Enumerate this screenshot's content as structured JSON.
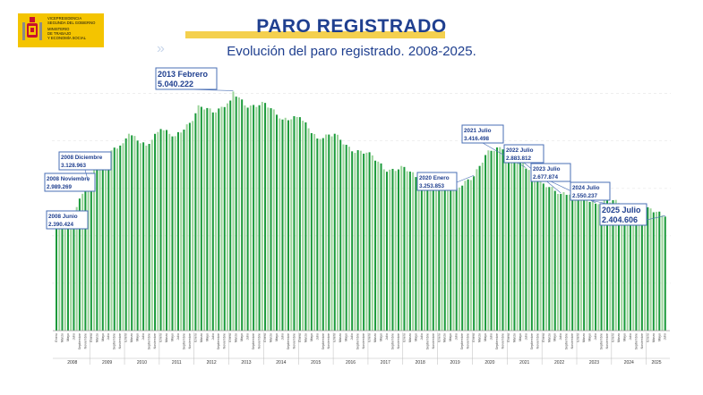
{
  "header": {
    "logo_lines": [
      "VICEPRESIDENCIA",
      "SEGUNDA DEL GOBIERNO",
      "MINISTERIO",
      "DE TRABAJO",
      "Y ECONOMÍA SOCIAL"
    ],
    "title": "PARO REGISTRADO",
    "subtitle": "Evolución del paro registrado. 2008-2025."
  },
  "colors": {
    "bar_even": "#1a9a3a",
    "bar_odd": "#9cd59b",
    "title": "#1f3f8f",
    "callout_border": "#4a6fb5",
    "logo_bg": "#f4c400"
  },
  "chart_data": {
    "type": "bar",
    "month_labels": [
      "Enero",
      "Marzo",
      "Mayo",
      "Julio",
      "Septiembre",
      "Noviembre"
    ],
    "years": [
      "2008",
      "2009",
      "2010",
      "2011",
      "2012",
      "2013",
      "2014",
      "2015",
      "2016",
      "2017",
      "2018",
      "2019",
      "2020",
      "2021",
      "2022",
      "2023",
      "2024",
      "2025"
    ],
    "ylim": [
      0,
      5500000
    ],
    "grid": true,
    "anchors": [
      {
        "i": 0,
        "v": 2261000
      },
      {
        "i": 5,
        "v": 2390424
      },
      {
        "i": 10,
        "v": 2989269
      },
      {
        "i": 11,
        "v": 3128963
      },
      {
        "i": 14,
        "v": 3600000
      },
      {
        "i": 19,
        "v": 3800000
      },
      {
        "i": 23,
        "v": 3950000
      },
      {
        "i": 25,
        "v": 4150000
      },
      {
        "i": 31,
        "v": 3900000
      },
      {
        "i": 36,
        "v": 4250000
      },
      {
        "i": 41,
        "v": 4100000
      },
      {
        "i": 47,
        "v": 4420000
      },
      {
        "i": 49,
        "v": 4750000
      },
      {
        "i": 55,
        "v": 4600000
      },
      {
        "i": 60,
        "v": 4850000
      },
      {
        "i": 61,
        "v": 5040222
      },
      {
        "i": 66,
        "v": 4700000
      },
      {
        "i": 72,
        "v": 4800000
      },
      {
        "i": 78,
        "v": 4450000
      },
      {
        "i": 84,
        "v": 4500000
      },
      {
        "i": 90,
        "v": 4050000
      },
      {
        "i": 96,
        "v": 4150000
      },
      {
        "i": 102,
        "v": 3780000
      },
      {
        "i": 108,
        "v": 3760000
      },
      {
        "i": 114,
        "v": 3350000
      },
      {
        "i": 120,
        "v": 3450000
      },
      {
        "i": 126,
        "v": 3150000
      },
      {
        "i": 132,
        "v": 3250000
      },
      {
        "i": 138,
        "v": 3000000
      },
      {
        "i": 144,
        "v": 3253853
      },
      {
        "i": 149,
        "v": 3800000
      },
      {
        "i": 158,
        "v": 3900000
      },
      {
        "i": 160,
        "v": 3900000
      },
      {
        "i": 162,
        "v": 3416498
      },
      {
        "i": 168,
        "v": 3100000
      },
      {
        "i": 174,
        "v": 2883812
      },
      {
        "i": 180,
        "v": 2900000
      },
      {
        "i": 186,
        "v": 2677874
      },
      {
        "i": 192,
        "v": 2750000
      },
      {
        "i": 198,
        "v": 2550237
      },
      {
        "i": 204,
        "v": 2600000
      },
      {
        "i": 210,
        "v": 2404606
      }
    ],
    "callouts": [
      {
        "i": 5,
        "label": "2008 Junio",
        "value": "2.390.424"
      },
      {
        "i": 10,
        "label": "2008 Noviembre",
        "value": "2.989.269"
      },
      {
        "i": 11,
        "label": "2008 Diciembre",
        "value": "3.128.963"
      },
      {
        "i": 61,
        "label": "2013 Febrero",
        "value": "5.040.222"
      },
      {
        "i": 144,
        "label": "2020 Enero",
        "value": "3.253.853"
      },
      {
        "i": 162,
        "label": "2021 Julio",
        "value": "3.416.498"
      },
      {
        "i": 174,
        "label": "2022 Julio",
        "value": "2.883.812"
      },
      {
        "i": 186,
        "label": "2023 Julio",
        "value": "2.677.874"
      },
      {
        "i": 198,
        "label": "2024 Julio",
        "value": "2.550.237"
      },
      {
        "i": 210,
        "label": "2025 Julio",
        "value": "2.404.606"
      }
    ]
  }
}
